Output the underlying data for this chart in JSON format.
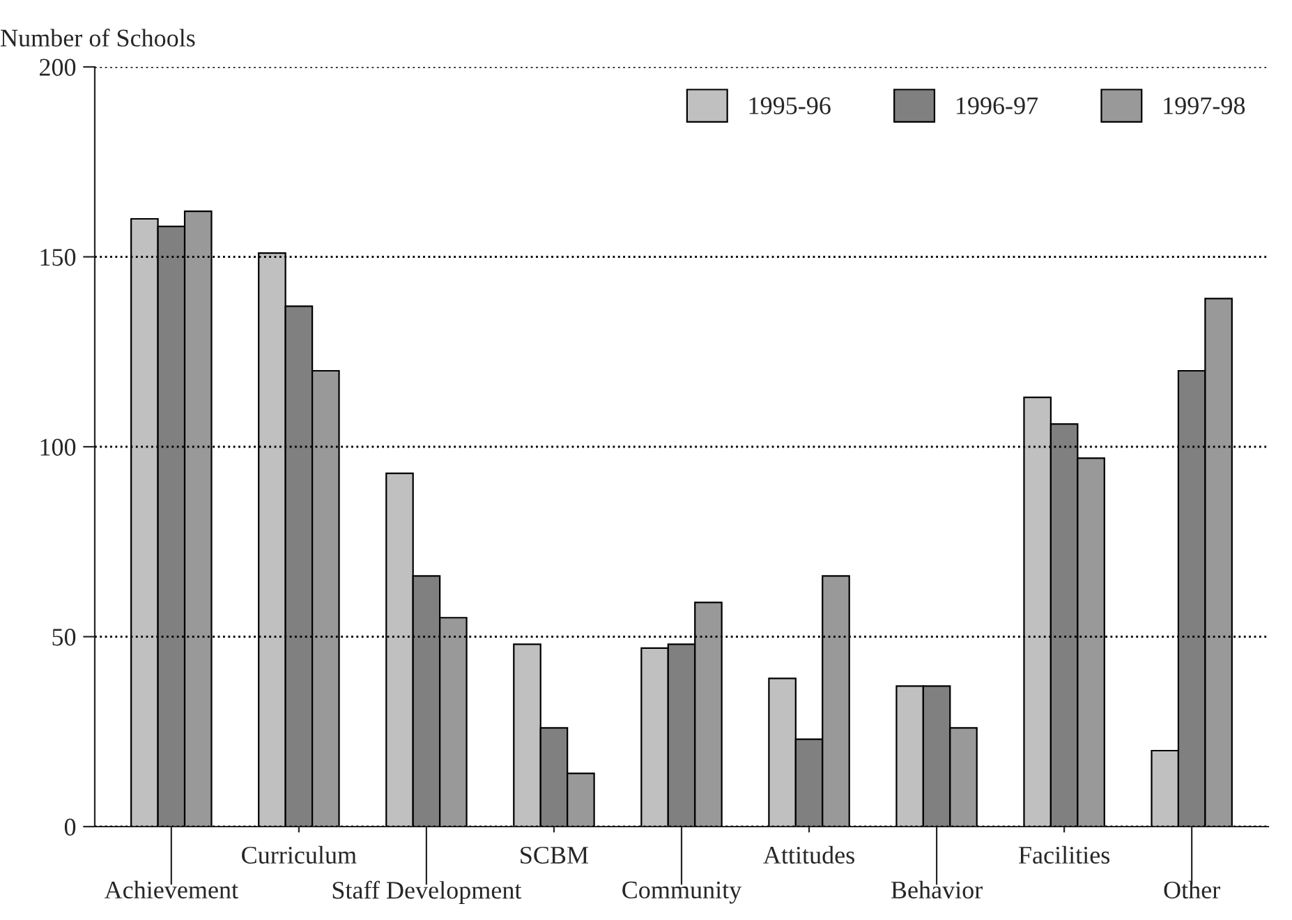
{
  "chart_data": {
    "type": "bar",
    "ylabel": "Number of Schools",
    "categories": [
      "Achievement",
      "Curriculum",
      "Staff Development",
      "SCBM",
      "Community",
      "Attitudes",
      "Behavior",
      "Facilities",
      "Other"
    ],
    "series": [
      {
        "name": "1995-96",
        "color": "#c0c0c0",
        "values": [
          160,
          151,
          93,
          48,
          47,
          39,
          37,
          113,
          20
        ]
      },
      {
        "name": "1996-97",
        "color": "#808080",
        "values": [
          158,
          137,
          66,
          26,
          48,
          23,
          37,
          106,
          120
        ]
      },
      {
        "name": "1997-98",
        "color": "#999999",
        "values": [
          162,
          120,
          55,
          14,
          59,
          66,
          26,
          97,
          139
        ]
      }
    ],
    "ylim": [
      0,
      200
    ],
    "yticks": [
      0,
      50,
      100,
      150,
      200
    ],
    "grid": "y",
    "legend": "top right"
  }
}
